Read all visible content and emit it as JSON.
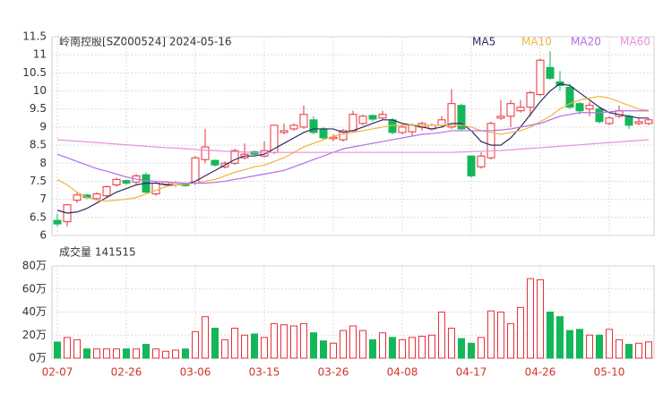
{
  "chart_data": [
    {
      "type": "candlestick",
      "title": "岭南控股[SZ000524] 2024-05-16",
      "up_color": "#e8303a",
      "down_color": "#14b65a",
      "open": [
        6.42,
        6.38,
        6.98,
        7.12,
        7.02,
        7.1,
        7.4,
        7.52,
        7.48,
        7.68,
        7.15,
        7.42,
        7.4,
        7.42,
        7.45,
        8.1,
        8.08,
        7.9,
        8.0,
        8.15,
        8.32,
        8.2,
        8.3,
        8.85,
        8.95,
        9.0,
        9.2,
        8.95,
        8.68,
        8.65,
        8.9,
        9.1,
        9.32,
        9.25,
        9.2,
        8.85,
        8.87,
        9.0,
        8.95,
        9.05,
        9.0,
        9.6,
        8.2,
        7.9,
        8.15,
        9.25,
        9.3,
        9.45,
        9.55,
        9.9,
        10.65,
        10.25,
        10.1,
        9.65,
        9.5,
        9.5,
        9.1,
        9.3,
        9.3,
        9.1,
        9.1
      ],
      "high": [
        6.6,
        6.87,
        7.2,
        7.15,
        7.2,
        7.38,
        7.6,
        7.55,
        7.7,
        7.75,
        7.5,
        7.5,
        7.5,
        7.45,
        8.2,
        8.95,
        8.1,
        8.05,
        8.4,
        8.55,
        8.35,
        8.6,
        9.05,
        9.1,
        9.1,
        9.6,
        9.3,
        9.0,
        8.8,
        8.95,
        9.45,
        9.35,
        9.35,
        9.45,
        9.25,
        9.05,
        9.1,
        9.15,
        9.1,
        9.3,
        10.05,
        9.65,
        8.2,
        8.3,
        9.15,
        9.75,
        9.75,
        9.75,
        10.0,
        10.9,
        11.1,
        10.55,
        10.2,
        9.7,
        9.7,
        9.55,
        9.3,
        9.6,
        9.35,
        9.25,
        9.25
      ],
      "low": [
        6.25,
        6.25,
        6.9,
        7.0,
        6.98,
        7.05,
        7.35,
        7.4,
        7.4,
        7.15,
        7.1,
        7.38,
        7.35,
        7.35,
        7.4,
        8.0,
        7.9,
        7.85,
        7.95,
        8.1,
        8.2,
        8.15,
        8.25,
        8.8,
        8.9,
        8.95,
        8.8,
        8.65,
        8.6,
        8.6,
        8.85,
        9.05,
        9.15,
        9.2,
        8.8,
        8.8,
        8.75,
        8.9,
        8.9,
        9.0,
        8.95,
        8.9,
        7.6,
        7.85,
        8.1,
        9.2,
        9.0,
        9.4,
        9.3,
        9.85,
        10.3,
        10.0,
        9.5,
        9.35,
        9.3,
        9.1,
        9.05,
        9.25,
        8.95,
        9.05,
        9.05
      ],
      "close": [
        6.32,
        6.85,
        7.12,
        7.05,
        7.15,
        7.35,
        7.55,
        7.45,
        7.65,
        7.2,
        7.45,
        7.48,
        7.46,
        7.38,
        8.15,
        8.45,
        7.95,
        8.0,
        8.35,
        8.25,
        8.25,
        8.35,
        9.05,
        8.9,
        9.05,
        9.35,
        8.85,
        8.7,
        8.72,
        8.9,
        9.35,
        9.3,
        9.22,
        9.35,
        8.85,
        9.0,
        9.05,
        9.1,
        9.05,
        9.2,
        9.65,
        8.95,
        7.65,
        8.2,
        9.1,
        9.3,
        9.65,
        9.55,
        9.95,
        10.85,
        10.35,
        10.15,
        9.55,
        9.45,
        9.6,
        9.15,
        9.25,
        9.45,
        9.05,
        9.15,
        9.2
      ],
      "series": [
        {
          "name": "MA5",
          "color": "#2b2b63",
          "values": [
            6.7,
            6.62,
            6.65,
            6.75,
            6.9,
            7.05,
            7.2,
            7.3,
            7.4,
            7.45,
            7.45,
            7.4,
            7.4,
            7.42,
            7.5,
            7.65,
            7.8,
            7.95,
            8.1,
            8.2,
            8.2,
            8.25,
            8.4,
            8.55,
            8.7,
            8.85,
            8.95,
            8.95,
            8.95,
            8.85,
            8.9,
            9.0,
            9.1,
            9.2,
            9.2,
            9.1,
            9.05,
            9.0,
            8.95,
            9.0,
            9.1,
            9.1,
            8.9,
            8.6,
            8.5,
            8.5,
            8.7,
            9.0,
            9.35,
            9.7,
            10.0,
            10.2,
            10.15,
            9.95,
            9.75,
            9.55,
            9.4,
            9.35,
            9.3,
            9.25,
            9.25
          ]
        },
        {
          "name": "MA10",
          "color": "#f2b440",
          "values": [
            7.55,
            7.4,
            7.2,
            7.05,
            6.98,
            6.95,
            6.98,
            7.0,
            7.05,
            7.15,
            7.25,
            7.35,
            7.4,
            7.42,
            7.45,
            7.5,
            7.55,
            7.65,
            7.75,
            7.82,
            7.9,
            7.95,
            8.05,
            8.15,
            8.3,
            8.45,
            8.55,
            8.65,
            8.75,
            8.8,
            8.85,
            8.9,
            8.95,
            9.0,
            9.05,
            9.05,
            9.05,
            9.05,
            9.05,
            9.05,
            9.05,
            9.05,
            9.0,
            8.9,
            8.85,
            8.8,
            8.85,
            8.9,
            9.0,
            9.15,
            9.3,
            9.5,
            9.65,
            9.75,
            9.8,
            9.85,
            9.8,
            9.7,
            9.6,
            9.5,
            9.45
          ]
        },
        {
          "name": "MA20",
          "color": "#b36ee3",
          "values": [
            8.25,
            8.15,
            8.05,
            7.95,
            7.85,
            7.78,
            7.7,
            7.62,
            7.56,
            7.52,
            7.5,
            7.48,
            7.46,
            7.45,
            7.45,
            7.45,
            7.47,
            7.5,
            7.55,
            7.6,
            7.65,
            7.7,
            7.75,
            7.8,
            7.9,
            8.0,
            8.1,
            8.2,
            8.3,
            8.4,
            8.45,
            8.5,
            8.55,
            8.6,
            8.65,
            8.7,
            8.75,
            8.8,
            8.82,
            8.85,
            8.9,
            8.9,
            8.9,
            8.9,
            8.9,
            8.92,
            8.95,
            9.0,
            9.05,
            9.1,
            9.2,
            9.3,
            9.35,
            9.4,
            9.4,
            9.4,
            9.42,
            9.45,
            9.45,
            9.45,
            9.45
          ]
        },
        {
          "name": "MA60",
          "color": "#e98fdc",
          "values": [
            8.65,
            8.63,
            8.61,
            8.59,
            8.57,
            8.55,
            8.53,
            8.51,
            8.49,
            8.47,
            8.45,
            8.43,
            8.42,
            8.4,
            8.38,
            8.36,
            8.35,
            8.33,
            8.32,
            8.31,
            8.3,
            8.3,
            8.3,
            8.3,
            8.3,
            8.3,
            8.3,
            8.3,
            8.3,
            8.3,
            8.3,
            8.3,
            8.3,
            8.3,
            8.3,
            8.3,
            8.3,
            8.3,
            8.3,
            8.3,
            8.3,
            8.31,
            8.32,
            8.33,
            8.34,
            8.35,
            8.37,
            8.39,
            8.41,
            8.43,
            8.45,
            8.47,
            8.49,
            8.51,
            8.53,
            8.55,
            8.57,
            8.59,
            8.61,
            8.63,
            8.65
          ]
        }
      ],
      "ylim": [
        6,
        11.5
      ],
      "yticks": [
        6,
        6.5,
        7,
        7.5,
        8,
        8.5,
        9,
        9.5,
        10,
        10.5,
        11,
        11.5
      ],
      "grid": true
    },
    {
      "type": "bar",
      "title": "成交量 141515",
      "categories": [
        "02-07",
        null,
        null,
        null,
        null,
        null,
        null,
        "02-26",
        null,
        null,
        null,
        null,
        null,
        null,
        "03-06",
        null,
        null,
        null,
        null,
        null,
        null,
        "03-15",
        null,
        null,
        null,
        null,
        null,
        null,
        "03-26",
        null,
        null,
        null,
        null,
        null,
        null,
        "04-08",
        null,
        null,
        null,
        null,
        null,
        null,
        "04-17",
        null,
        null,
        null,
        null,
        null,
        null,
        "04-26",
        null,
        null,
        null,
        null,
        null,
        null,
        "05-10",
        null,
        null,
        null,
        null
      ],
      "values": [
        14,
        18,
        16,
        8,
        8,
        8,
        8,
        8,
        8,
        12,
        8,
        6,
        7,
        8,
        23,
        36,
        26,
        16,
        26,
        20,
        21,
        18,
        30,
        29,
        28,
        30,
        22,
        15,
        13,
        24,
        28,
        24,
        16,
        22,
        18,
        16,
        18,
        19,
        20,
        40,
        26,
        17,
        13,
        18,
        41,
        40,
        30,
        44,
        69,
        68,
        40,
        36,
        24,
        25,
        20,
        20,
        25,
        16,
        12,
        13,
        14.15
      ],
      "ylim": [
        0,
        80
      ],
      "yticks": [
        {
          "value": 0,
          "label": "0万"
        },
        {
          "value": 20,
          "label": "20万"
        },
        {
          "value": 40,
          "label": "40万"
        },
        {
          "value": 60,
          "label": "60万"
        },
        {
          "value": 80,
          "label": "80万"
        }
      ],
      "grid": true
    }
  ]
}
